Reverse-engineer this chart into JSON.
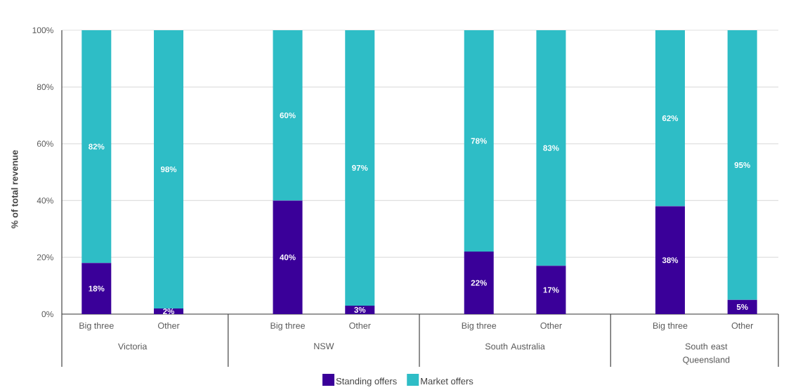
{
  "chart_data": {
    "type": "bar",
    "stacked": true,
    "ylabel": "% of total revenue",
    "categories": [
      "Big three",
      "Other",
      "Big three",
      "Other",
      "Big three",
      "Other",
      "Big three",
      "Other"
    ],
    "series": [
      {
        "name": "Standing offers",
        "color": "#3a0099",
        "values": [
          18,
          2,
          40,
          3,
          22,
          17,
          38,
          5
        ],
        "value_labels": [
          "18%",
          "2%",
          "40%",
          "3%",
          "22%",
          "17%",
          "38%",
          "5%"
        ]
      },
      {
        "name": "Market offers",
        "color": "#2ebdc6",
        "values": [
          82,
          98,
          60,
          97,
          78,
          83,
          62,
          95
        ],
        "value_labels": [
          "82%",
          "98%",
          "60%",
          "97%",
          "78%",
          "83%",
          "62%",
          "95%"
        ]
      }
    ],
    "ylim": [
      0,
      100
    ],
    "yticks": [
      {
        "value": 0,
        "label": "0%"
      },
      {
        "value": 20,
        "label": "20%"
      },
      {
        "value": 40,
        "label": "40%"
      },
      {
        "value": 60,
        "label": "60%"
      },
      {
        "value": 80,
        "label": "80%"
      },
      {
        "value": 100,
        "label": "100%"
      }
    ],
    "grid": "y",
    "legend": "bottom",
    "annotations": [
      "Victoria",
      "NSW",
      "South Australia",
      "South east Queensland"
    ]
  }
}
